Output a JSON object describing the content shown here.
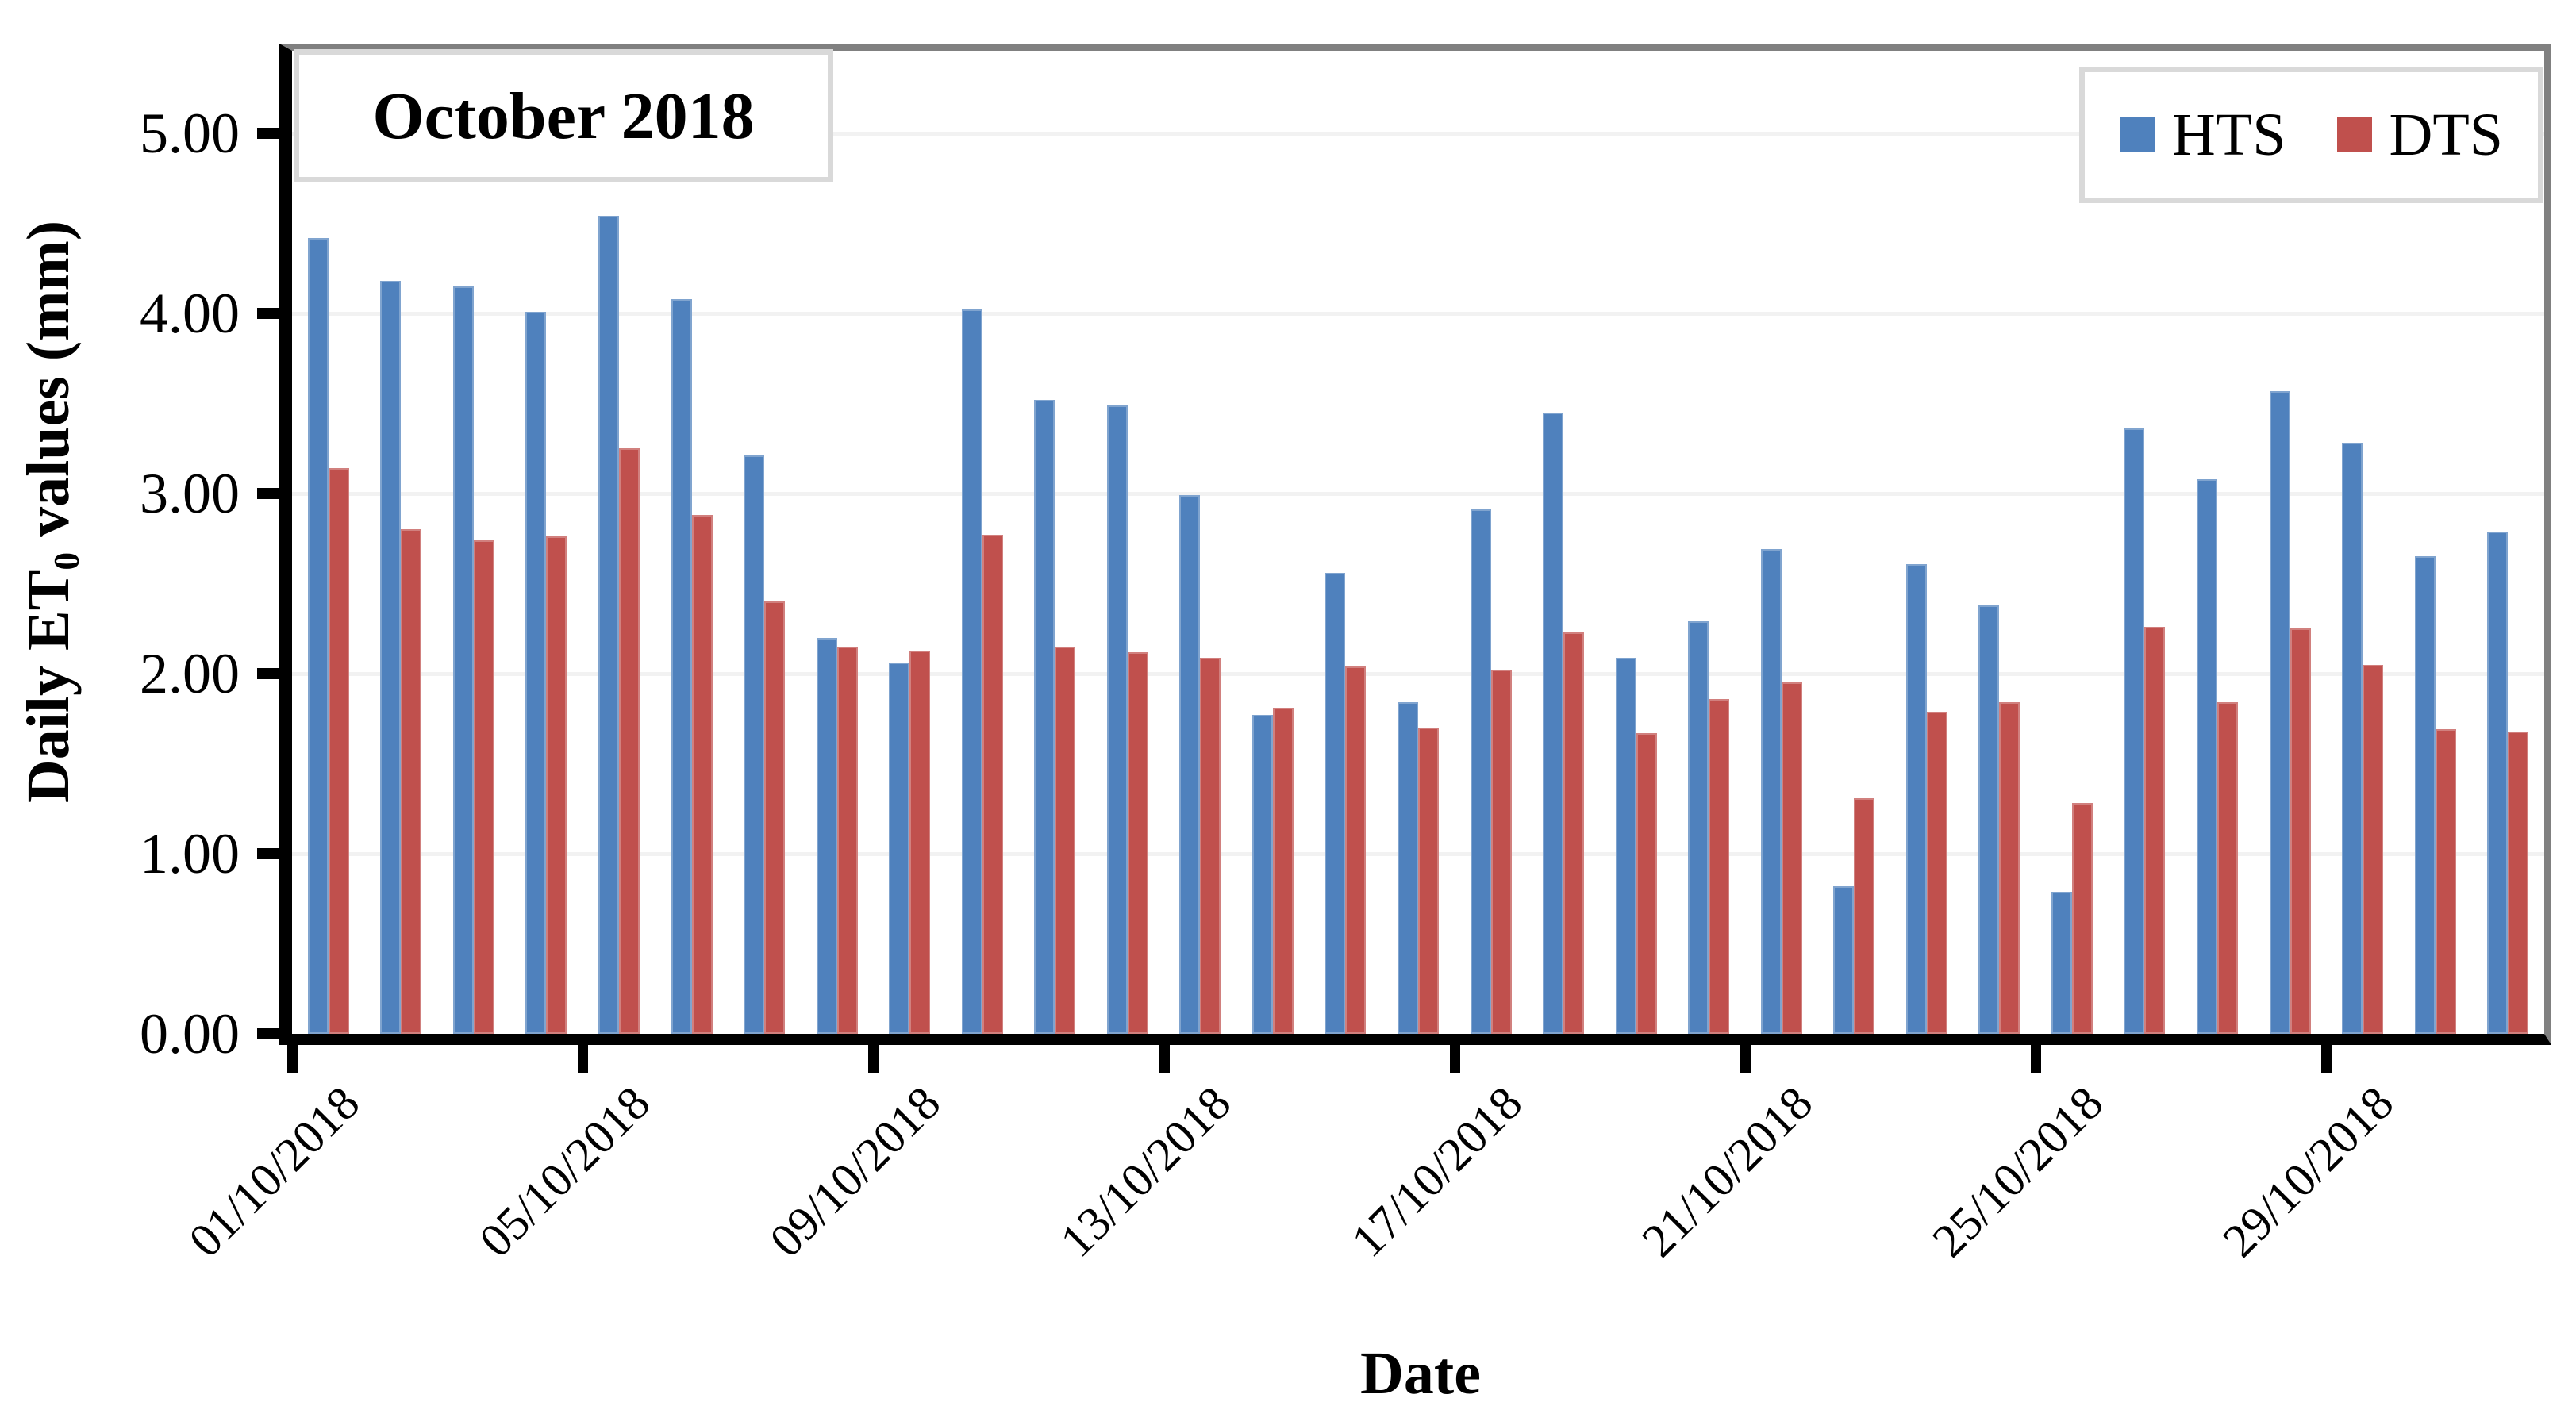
{
  "chart_data": {
    "type": "bar",
    "title_box": "October 2018",
    "xlabel": "Date",
    "ylabel": "Daily ET₀ values (mm)",
    "ylabel_parts": {
      "prefix": "Daily ET",
      "sub": "0",
      "suffix": " values (mm)"
    },
    "ylim": [
      0,
      5.5
    ],
    "ytick_labels": [
      "0.00",
      "1.00",
      "2.00",
      "3.00",
      "4.00",
      "5.00"
    ],
    "grid": true,
    "legend_position": "top-right",
    "label_interval": 4,
    "categories": [
      "01/10/2018",
      "02/10/2018",
      "03/10/2018",
      "04/10/2018",
      "05/10/2018",
      "06/10/2018",
      "07/10/2018",
      "08/10/2018",
      "09/10/2018",
      "10/10/2018",
      "11/10/2018",
      "12/10/2018",
      "13/10/2018",
      "14/10/2018",
      "15/10/2018",
      "16/10/2018",
      "17/10/2018",
      "18/10/2018",
      "19/10/2018",
      "20/10/2018",
      "21/10/2018",
      "22/10/2018",
      "23/10/2018",
      "24/10/2018",
      "25/10/2018",
      "26/10/2018",
      "27/10/2018",
      "28/10/2018",
      "29/10/2018",
      "30/10/2018",
      "31/10/2018"
    ],
    "shown_x_labels": [
      "01/10/2018",
      "05/10/2018",
      "09/10/2018",
      "13/10/2018",
      "17/10/2018",
      "21/10/2018",
      "25/10/2018",
      "29/10/2018"
    ],
    "series": [
      {
        "name": "HTS",
        "color": "#4F81BD",
        "values": [
          4.42,
          4.18,
          4.15,
          4.01,
          4.54,
          4.08,
          3.21,
          2.2,
          2.06,
          4.02,
          3.52,
          3.49,
          2.99,
          1.77,
          2.56,
          1.84,
          2.91,
          3.45,
          2.09,
          2.29,
          2.69,
          0.82,
          2.61,
          2.38,
          0.79,
          3.36,
          3.08,
          3.57,
          3.28,
          2.65,
          2.79
        ]
      },
      {
        "name": "DTS",
        "color": "#C0504D",
        "values": [
          3.14,
          2.8,
          2.74,
          2.76,
          3.25,
          2.88,
          2.4,
          2.15,
          2.13,
          2.77,
          2.15,
          2.12,
          2.09,
          1.81,
          2.04,
          1.7,
          2.02,
          2.23,
          1.67,
          1.86,
          1.95,
          1.31,
          1.79,
          1.84,
          1.28,
          2.26,
          1.84,
          2.25,
          2.05,
          1.69,
          1.68
        ]
      }
    ],
    "colors": {
      "grid": "#F2F2F2",
      "axis": "#000000",
      "plot_border": "#808080",
      "box_border": "#D9D9D9"
    }
  }
}
